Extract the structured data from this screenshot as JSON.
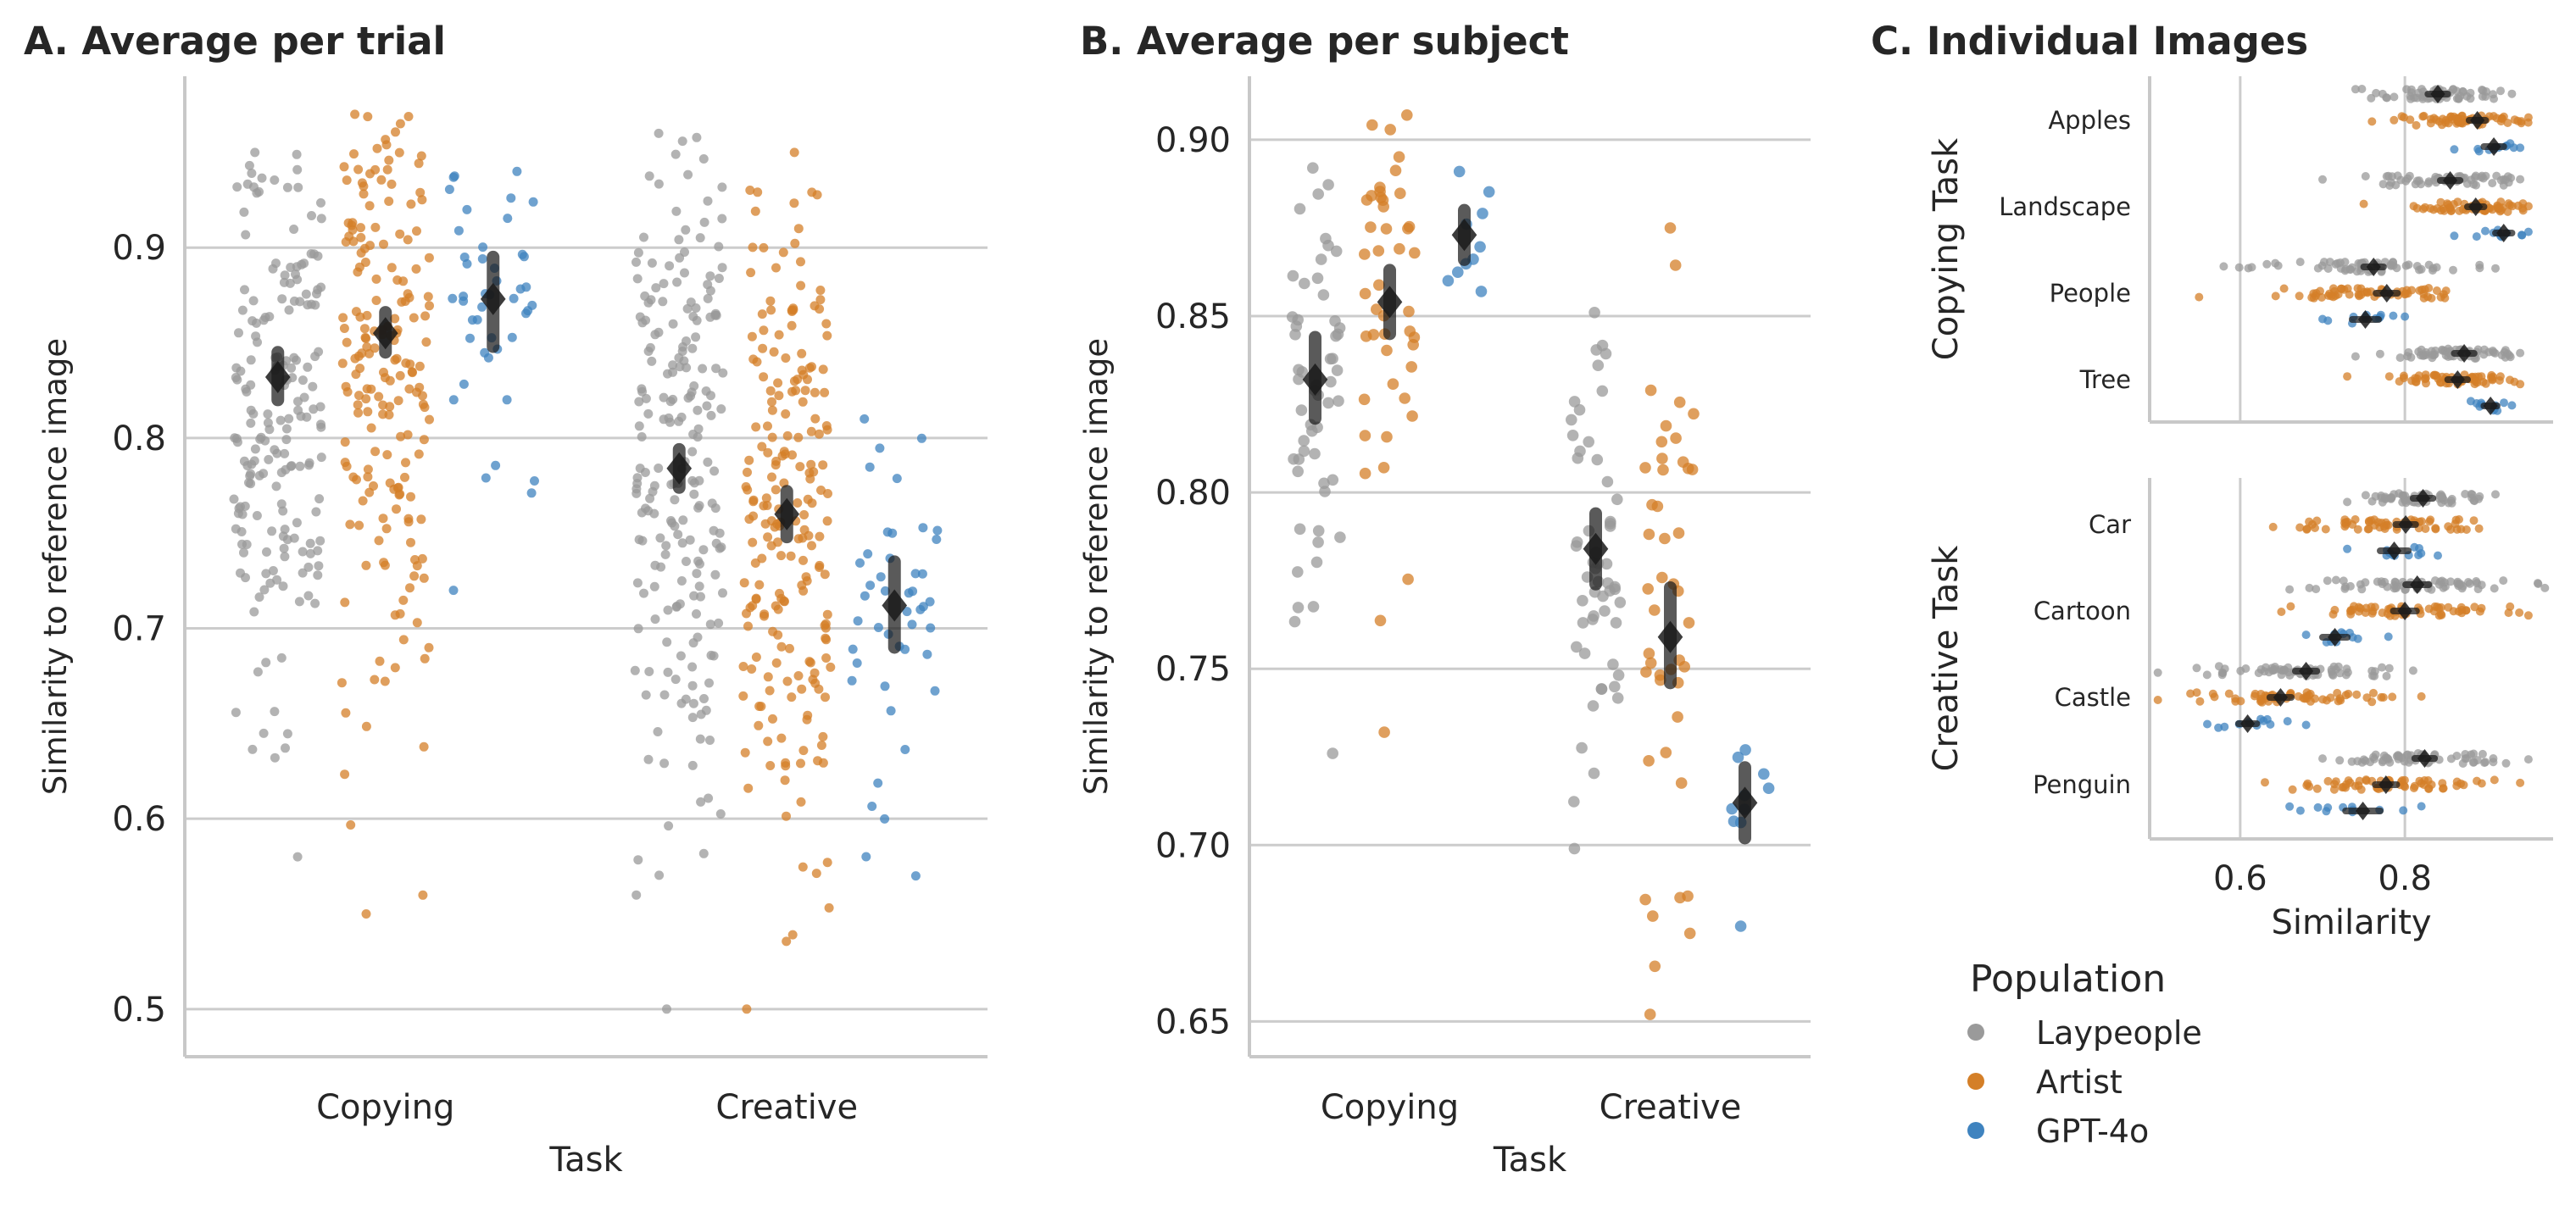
{
  "colors": {
    "Laypeople": "#9a9a9a",
    "Artist": "#d47f28",
    "GPT-4o": "#3f83bf",
    "grid": "#cccccc",
    "axis": "#c8c8c8",
    "marker": "#1a1a1a"
  },
  "legend": {
    "title": "Population",
    "placement": "bottom-left below panel C",
    "items": [
      {
        "label": "Laypeople",
        "color": "#9a9a9a"
      },
      {
        "label": "Artist",
        "color": "#d47f28"
      },
      {
        "label": "GPT-4o",
        "color": "#3f83bf"
      }
    ]
  },
  "chart_data": [
    {
      "id": "A",
      "type": "scatter",
      "subtype": "strip-pointplot",
      "title": "A. Average per trial",
      "xlabel": "Task",
      "ylabel": "Similarity to reference image",
      "categories": [
        "Copying",
        "Creative"
      ],
      "ylim": [
        0.475,
        0.99
      ],
      "yticks": [
        0.5,
        0.6,
        0.7,
        0.8,
        0.9
      ],
      "ytick_labels": [
        "0.5",
        "0.6",
        "0.7",
        "0.8",
        "0.9"
      ],
      "grid": "horizontal",
      "series": [
        {
          "name": "Laypeople",
          "mean": [
            0.832,
            0.784
          ],
          "ci": [
            [
              0.82,
              0.845
            ],
            [
              0.774,
              0.794
            ]
          ],
          "n": [
            190,
            210
          ],
          "points_range": [
            [
              0.58,
              0.95
            ],
            [
              0.5,
              0.96
            ]
          ]
        },
        {
          "name": "Artist",
          "mean": [
            0.855,
            0.76
          ],
          "ci": [
            [
              0.845,
              0.866
            ],
            [
              0.748,
              0.772
            ]
          ],
          "n": [
            190,
            210
          ],
          "points_range": [
            [
              0.55,
              0.97
            ],
            [
              0.5,
              0.95
            ]
          ]
        },
        {
          "name": "GPT-4o",
          "mean": [
            0.873,
            0.712
          ],
          "ci": [
            [
              0.848,
              0.895
            ],
            [
              0.69,
              0.735
            ]
          ],
          "n": [
            45,
            45
          ],
          "points_range": [
            [
              0.72,
              0.94
            ],
            [
              0.57,
              0.81
            ]
          ]
        }
      ]
    },
    {
      "id": "B",
      "type": "scatter",
      "subtype": "strip-pointplot",
      "title": "B. Average per subject",
      "xlabel": "Task",
      "ylabel": "Similarity to reference image",
      "categories": [
        "Copying",
        "Creative"
      ],
      "ylim": [
        0.64,
        0.918
      ],
      "yticks": [
        0.65,
        0.7,
        0.75,
        0.8,
        0.85,
        0.9
      ],
      "ytick_labels": [
        "0.65",
        "0.70",
        "0.75",
        "0.80",
        "0.85",
        "0.90"
      ],
      "grid": "horizontal",
      "series": [
        {
          "name": "Laypeople",
          "mean": [
            0.832,
            0.784
          ],
          "ci": [
            [
              0.821,
              0.844
            ],
            [
              0.774,
              0.794
            ]
          ],
          "n": [
            55,
            55
          ],
          "points_range": [
            [
              0.726,
              0.892
            ],
            [
              0.699,
              0.851
            ]
          ]
        },
        {
          "name": "Artist",
          "mean": [
            0.854,
            0.759
          ],
          "ci": [
            [
              0.845,
              0.863
            ],
            [
              0.746,
              0.773
            ]
          ],
          "n": [
            45,
            45
          ],
          "points_range": [
            [
              0.732,
              0.907
            ],
            [
              0.652,
              0.875
            ]
          ]
        },
        {
          "name": "GPT-4o",
          "mean": [
            0.873,
            0.712
          ],
          "ci": [
            [
              0.866,
              0.88
            ],
            [
              0.702,
              0.722
            ]
          ],
          "n": [
            10,
            10
          ],
          "points_range": [
            [
              0.857,
              0.891
            ],
            [
              0.677,
              0.727
            ]
          ]
        }
      ]
    },
    {
      "id": "C",
      "type": "scatter",
      "subtype": "horizontal-strip-pointplot",
      "title": "C. Individual Images",
      "xlabel": "Similarity",
      "xlim": [
        0.49,
        0.98
      ],
      "xticks": [
        0.6,
        0.8
      ],
      "xtick_labels": [
        "0.6",
        "0.8"
      ],
      "grid": "vertical",
      "facets": [
        {
          "ylabel": "Copying Task",
          "categories": [
            "Apples",
            "Landscape",
            "People",
            "Tree"
          ],
          "series": [
            {
              "name": "Laypeople",
              "mean": [
                0.84,
                0.855,
                0.762,
                0.872
              ],
              "ci": [
                [
                  0.828,
                  0.852
                ],
                [
                  0.843,
                  0.867
                ],
                [
                  0.75,
                  0.774
                ],
                [
                  0.86,
                  0.884
                ]
              ],
              "points_range": [
                [
                  0.74,
                  0.93
                ],
                [
                  0.7,
                  0.94
                ],
                [
                  0.58,
                  0.91
                ],
                [
                  0.74,
                  0.94
                ]
              ]
            },
            {
              "name": "Artist",
              "mean": [
                0.888,
                0.886,
                0.778,
                0.864
              ],
              "ci": [
                [
                  0.878,
                  0.898
                ],
                [
                  0.876,
                  0.896
                ],
                [
                  0.765,
                  0.791
                ],
                [
                  0.852,
                  0.876
                ]
              ],
              "points_range": [
                [
                  0.76,
                  0.95
                ],
                [
                  0.75,
                  0.95
                ],
                [
                  0.55,
                  0.85
                ],
                [
                  0.73,
                  0.94
                ]
              ]
            },
            {
              "name": "GPT-4o",
              "mean": [
                0.908,
                0.92,
                0.752,
                0.904
              ],
              "ci": [
                [
                  0.896,
                  0.92
                ],
                [
                  0.91,
                  0.93
                ],
                [
                  0.736,
                  0.768
                ],
                [
                  0.896,
                  0.912
                ]
              ],
              "points_range": [
                [
                  0.86,
                  0.94
                ],
                [
                  0.86,
                  0.95
                ],
                [
                  0.7,
                  0.8
                ],
                [
                  0.88,
                  0.93
                ]
              ]
            }
          ]
        },
        {
          "ylabel": "Creative Task",
          "categories": [
            "Car",
            "Cartoon",
            "Castle",
            "Penguin"
          ],
          "series": [
            {
              "name": "Laypeople",
              "mean": [
                0.822,
                0.815,
                0.68,
                0.824
              ],
              "ci": [
                [
                  0.81,
                  0.834
                ],
                [
                  0.801,
                  0.829
                ],
                [
                  0.667,
                  0.693
                ],
                [
                  0.812,
                  0.836
                ]
              ],
              "points_range": [
                [
                  0.73,
                  0.91
                ],
                [
                  0.66,
                  0.97
                ],
                [
                  0.5,
                  0.81
                ],
                [
                  0.7,
                  0.95
                ]
              ]
            },
            {
              "name": "Artist",
              "mean": [
                0.801,
                0.8,
                0.649,
                0.777
              ],
              "ci": [
                [
                  0.789,
                  0.813
                ],
                [
                  0.786,
                  0.814
                ],
                [
                  0.636,
                  0.662
                ],
                [
                  0.764,
                  0.79
                ]
              ],
              "points_range": [
                [
                  0.64,
                  0.89
                ],
                [
                  0.65,
                  0.95
                ],
                [
                  0.5,
                  0.82
                ],
                [
                  0.63,
                  0.94
                ]
              ]
            },
            {
              "name": "GPT-4o",
              "mean": [
                0.787,
                0.715,
                0.609,
                0.749
              ],
              "ci": [
                [
                  0.77,
                  0.804
                ],
                [
                  0.7,
                  0.73
                ],
                [
                  0.598,
                  0.62
                ],
                [
                  0.728,
                  0.77
                ]
              ],
              "points_range": [
                [
                  0.73,
                  0.84
                ],
                [
                  0.68,
                  0.78
                ],
                [
                  0.56,
                  0.68
                ],
                [
                  0.66,
                  0.82
                ]
              ]
            }
          ]
        }
      ]
    }
  ]
}
